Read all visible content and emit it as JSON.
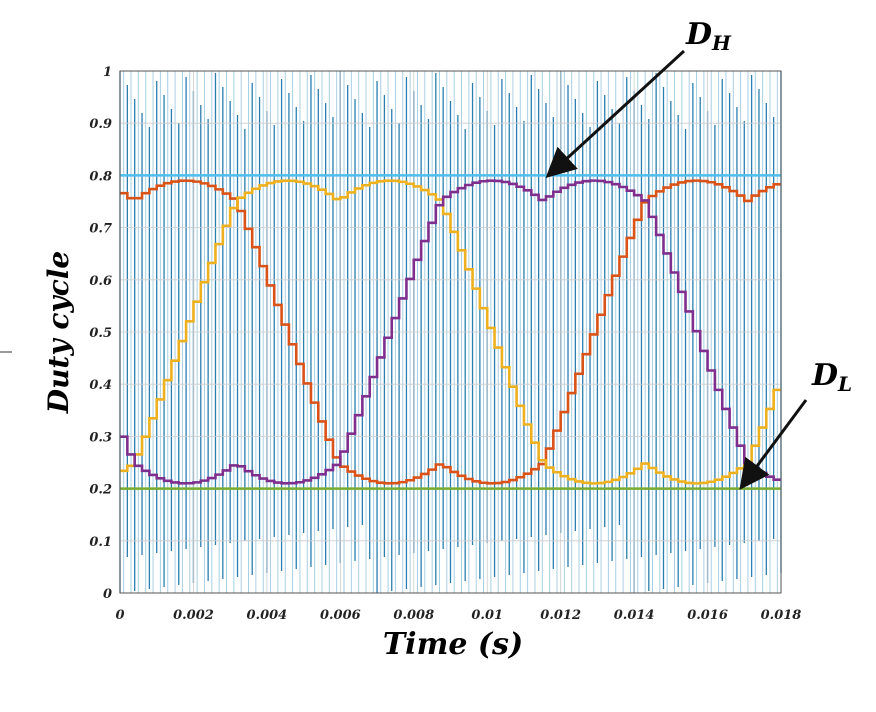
{
  "chart_data": {
    "type": "line",
    "xlabel": "Time (s)",
    "ylabel": "Duty cycle",
    "xlim": [
      0,
      0.018
    ],
    "ylim": [
      0,
      1
    ],
    "xticks": [
      "0",
      "0.002",
      "0.004",
      "0.006",
      "0.008",
      "0.01",
      "0.012",
      "0.014",
      "0.016",
      "0.018"
    ],
    "yticks": [
      "0",
      "0.1",
      "0.2",
      "0.3",
      "0.4",
      "0.5",
      "0.6",
      "0.7",
      "0.8",
      "0.9",
      "1"
    ],
    "grid": true,
    "waveform": {
      "kind": "stepped three-phase sinusoid with min-max offset",
      "offset": 0.5,
      "max": 0.79,
      "min": 0.21,
      "period": 0.0167,
      "step": 0.0002
    },
    "series": [
      {
        "color": "#d95319",
        "phase_dip_time": 0.0003
      },
      {
        "color": "#edb120",
        "phase_dip_time": 0.0058
      },
      {
        "color": "#7e2f8e",
        "phase_dip_time": 0.0114
      }
    ],
    "carrier": {
      "color": "#0072bd",
      "spacing": 0.0002
    },
    "annotations": [
      {
        "text": "D",
        "sub": "H",
        "y": 0.8,
        "color": "#4dbeee"
      },
      {
        "text": "D",
        "sub": "L",
        "y": 0.2,
        "color": "#77ac30"
      }
    ]
  }
}
